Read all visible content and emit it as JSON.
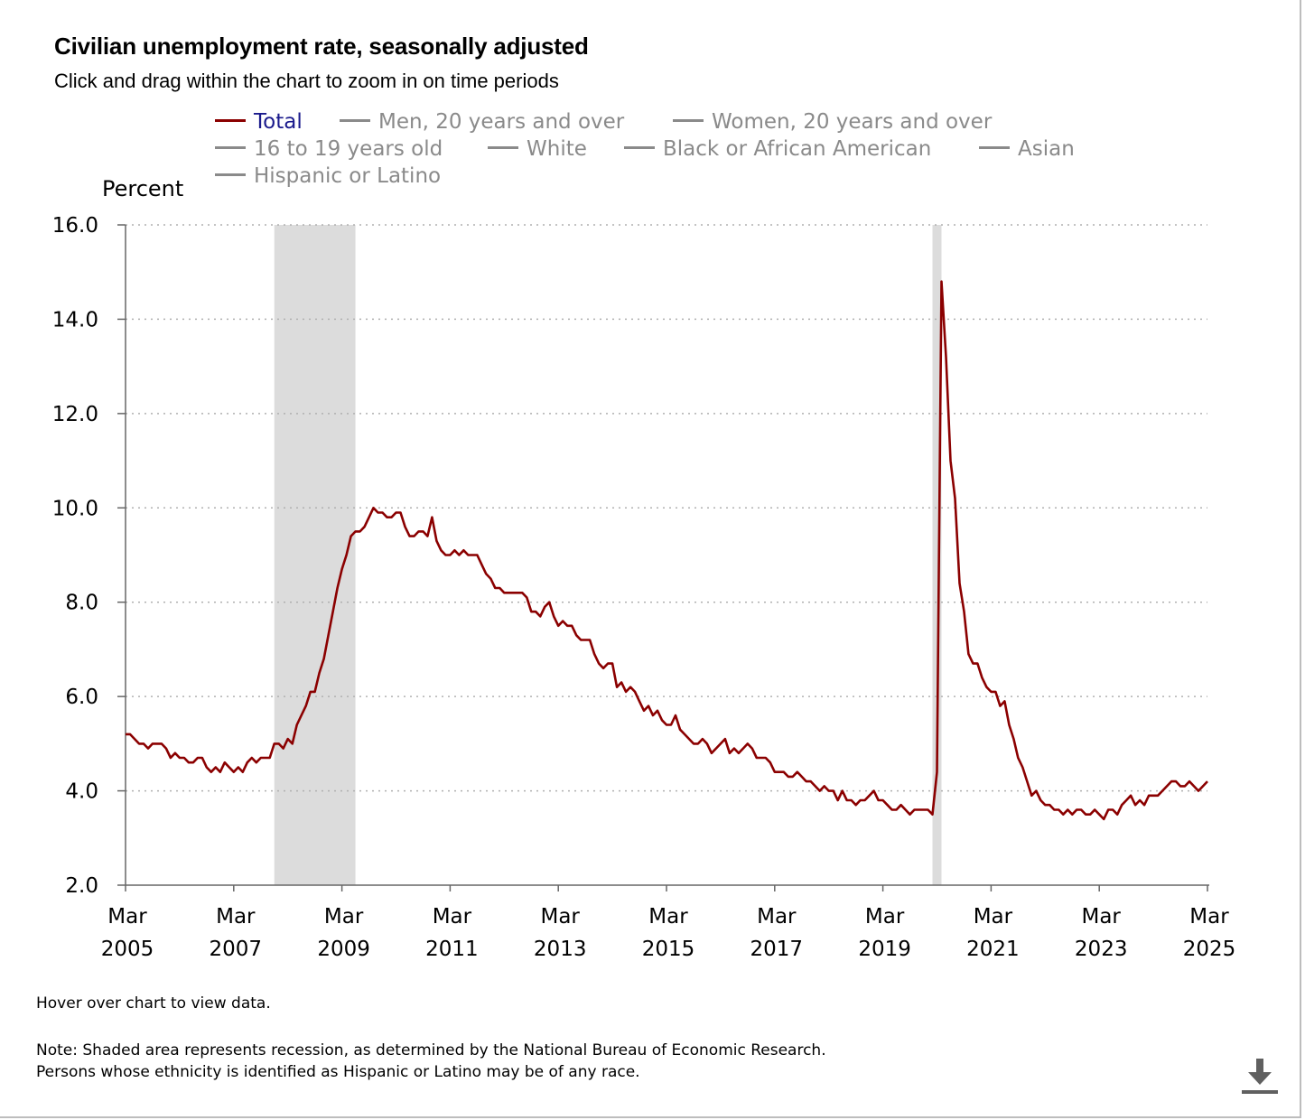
{
  "title": "Civilian unemployment rate, seasonally adjusted",
  "subtitle": "Click and drag within the chart to zoom in on time periods",
  "legend": [
    {
      "label": "Total",
      "active": true
    },
    {
      "label": "Men, 20 years and over",
      "active": false
    },
    {
      "label": "Women, 20 years and over",
      "active": false
    },
    {
      "label": "16 to 19 years old",
      "active": false
    },
    {
      "label": "White",
      "active": false
    },
    {
      "label": "Black or African American",
      "active": false
    },
    {
      "label": "Asian",
      "active": false
    },
    {
      "label": "Hispanic or Latino",
      "active": false
    }
  ],
  "colors": {
    "line": "#8b0000",
    "recession": "#dcdcdc",
    "grid": "#b0b0b0",
    "legend_inactive": "#8a8a8a",
    "legend_active_text": "#1a1a8c"
  },
  "hover_note": "Hover over chart to view data.",
  "note_line1": "Note: Shaded area represents recession, as determined by the National Bureau of Economic Research.",
  "note_line2": "Persons whose ethnicity is identified as Hispanic or Latino may be of any race.",
  "download_icon": "download-icon",
  "chart_data": {
    "type": "line",
    "title": "Civilian unemployment rate, seasonally adjusted",
    "ylabel": "Percent",
    "xlabel": "",
    "ylim": [
      2.0,
      16.0
    ],
    "yticks": [
      "16.0",
      "14.0",
      "12.0",
      "10.0",
      "8.0",
      "6.0",
      "4.0",
      "2.0"
    ],
    "xticks": [
      {
        "month": "Mar",
        "year": "2005"
      },
      {
        "month": "Mar",
        "year": "2007"
      },
      {
        "month": "Mar",
        "year": "2009"
      },
      {
        "month": "Mar",
        "year": "2011"
      },
      {
        "month": "Mar",
        "year": "2013"
      },
      {
        "month": "Mar",
        "year": "2015"
      },
      {
        "month": "Mar",
        "year": "2017"
      },
      {
        "month": "Mar",
        "year": "2019"
      },
      {
        "month": "Mar",
        "year": "2021"
      },
      {
        "month": "Mar",
        "year": "2023"
      },
      {
        "month": "Mar",
        "year": "2025"
      }
    ],
    "x_start": "2005-03",
    "x_end": "2025-03",
    "grid": true,
    "recessions": [
      {
        "start": "2007-12",
        "end": "2009-06"
      },
      {
        "start": "2020-02",
        "end": "2020-04"
      }
    ],
    "series": [
      {
        "name": "Total",
        "start": "2005-03",
        "frequency": "monthly",
        "values": [
          5.2,
          5.2,
          5.1,
          5.0,
          5.0,
          4.9,
          5.0,
          5.0,
          5.0,
          4.9,
          4.7,
          4.8,
          4.7,
          4.7,
          4.6,
          4.6,
          4.7,
          4.7,
          4.5,
          4.4,
          4.5,
          4.4,
          4.6,
          4.5,
          4.4,
          4.5,
          4.4,
          4.6,
          4.7,
          4.6,
          4.7,
          4.7,
          4.7,
          5.0,
          5.0,
          4.9,
          5.1,
          5.0,
          5.4,
          5.6,
          5.8,
          6.1,
          6.1,
          6.5,
          6.8,
          7.3,
          7.8,
          8.3,
          8.7,
          9.0,
          9.4,
          9.5,
          9.5,
          9.6,
          9.8,
          10.0,
          9.9,
          9.9,
          9.8,
          9.8,
          9.9,
          9.9,
          9.6,
          9.4,
          9.4,
          9.5,
          9.5,
          9.4,
          9.8,
          9.3,
          9.1,
          9.0,
          9.0,
          9.1,
          9.0,
          9.1,
          9.0,
          9.0,
          9.0,
          8.8,
          8.6,
          8.5,
          8.3,
          8.3,
          8.2,
          8.2,
          8.2,
          8.2,
          8.2,
          8.1,
          7.8,
          7.8,
          7.7,
          7.9,
          8.0,
          7.7,
          7.5,
          7.6,
          7.5,
          7.5,
          7.3,
          7.2,
          7.2,
          7.2,
          6.9,
          6.7,
          6.6,
          6.7,
          6.7,
          6.2,
          6.3,
          6.1,
          6.2,
          6.1,
          5.9,
          5.7,
          5.8,
          5.6,
          5.7,
          5.5,
          5.4,
          5.4,
          5.6,
          5.3,
          5.2,
          5.1,
          5.0,
          5.0,
          5.1,
          5.0,
          4.8,
          4.9,
          5.0,
          5.1,
          4.8,
          4.9,
          4.8,
          4.9,
          5.0,
          4.9,
          4.7,
          4.7,
          4.7,
          4.6,
          4.4,
          4.4,
          4.4,
          4.3,
          4.3,
          4.4,
          4.3,
          4.2,
          4.2,
          4.1,
          4.0,
          4.1,
          4.0,
          4.0,
          3.8,
          4.0,
          3.8,
          3.8,
          3.7,
          3.8,
          3.8,
          3.9,
          4.0,
          3.8,
          3.8,
          3.7,
          3.6,
          3.6,
          3.7,
          3.6,
          3.5,
          3.6,
          3.6,
          3.6,
          3.6,
          3.5,
          4.4,
          14.8,
          13.2,
          11.0,
          10.2,
          8.4,
          7.8,
          6.9,
          6.7,
          6.7,
          6.4,
          6.2,
          6.1,
          6.1,
          5.8,
          5.9,
          5.4,
          5.1,
          4.7,
          4.5,
          4.2,
          3.9,
          4.0,
          3.8,
          3.7,
          3.7,
          3.6,
          3.6,
          3.5,
          3.6,
          3.5,
          3.6,
          3.6,
          3.5,
          3.5,
          3.6,
          3.5,
          3.4,
          3.6,
          3.6,
          3.5,
          3.7,
          3.8,
          3.9,
          3.7,
          3.8,
          3.7,
          3.9,
          3.9,
          3.9,
          4.0,
          4.1,
          4.2,
          4.2,
          4.1,
          4.1,
          4.2,
          4.1,
          4.0,
          4.1,
          4.2
        ]
      }
    ]
  }
}
